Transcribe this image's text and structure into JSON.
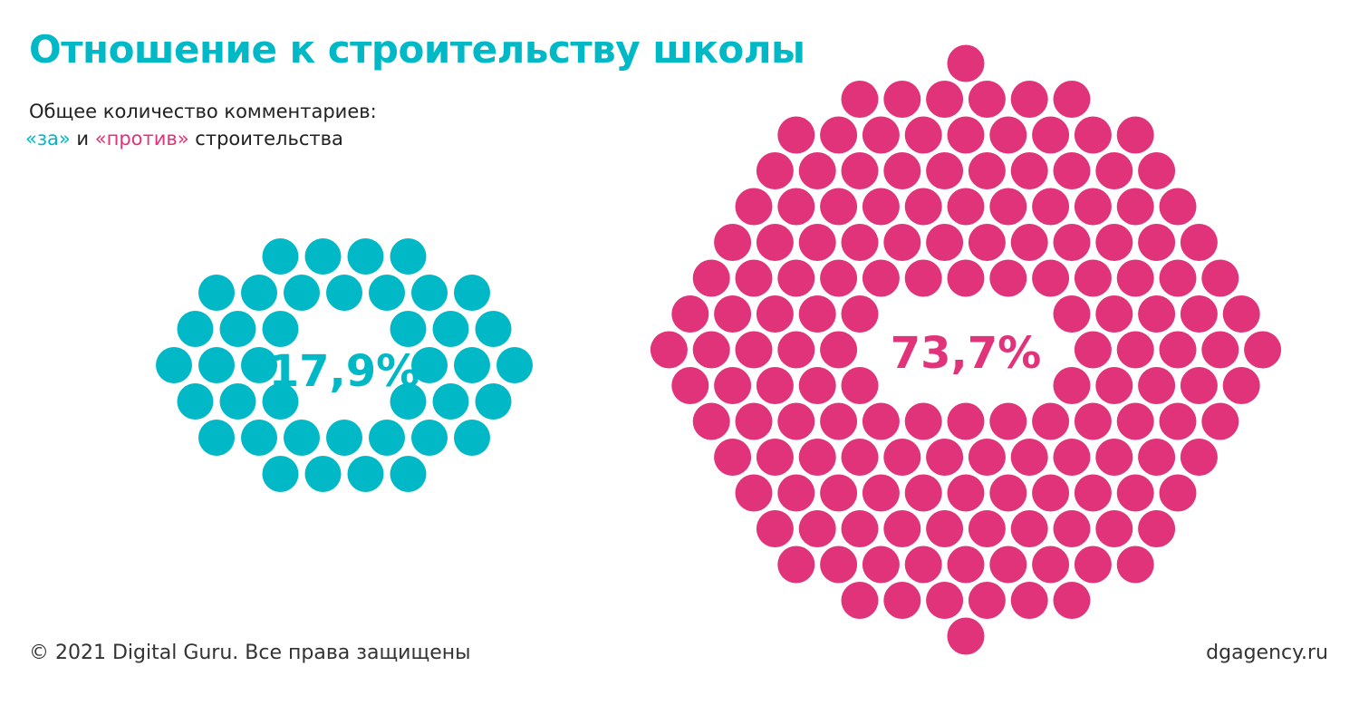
{
  "header": {
    "title": "Отношение к строительству школы",
    "subtitle_line1": "Общее количество комментариев:",
    "subtitle_for": "«за»",
    "subtitle_and": " и ",
    "subtitle_against": "«против»",
    "subtitle_tail": " строительства"
  },
  "colors": {
    "for": "#00b8c6",
    "against": "#e0337a"
  },
  "chart_data": {
    "type": "bubble-cluster",
    "title": "Отношение к строительству школы",
    "series": [
      {
        "name": "«за»",
        "label": "17,9%",
        "value": 17.9,
        "color": "#00b8c6"
      },
      {
        "name": "«против»",
        "label": "73,7%",
        "value": 73.7,
        "color": "#e0337a"
      }
    ]
  },
  "footer": {
    "copyright": "© 2021 Digital Guru. Все права защищены",
    "site": "dgagency.ru"
  }
}
